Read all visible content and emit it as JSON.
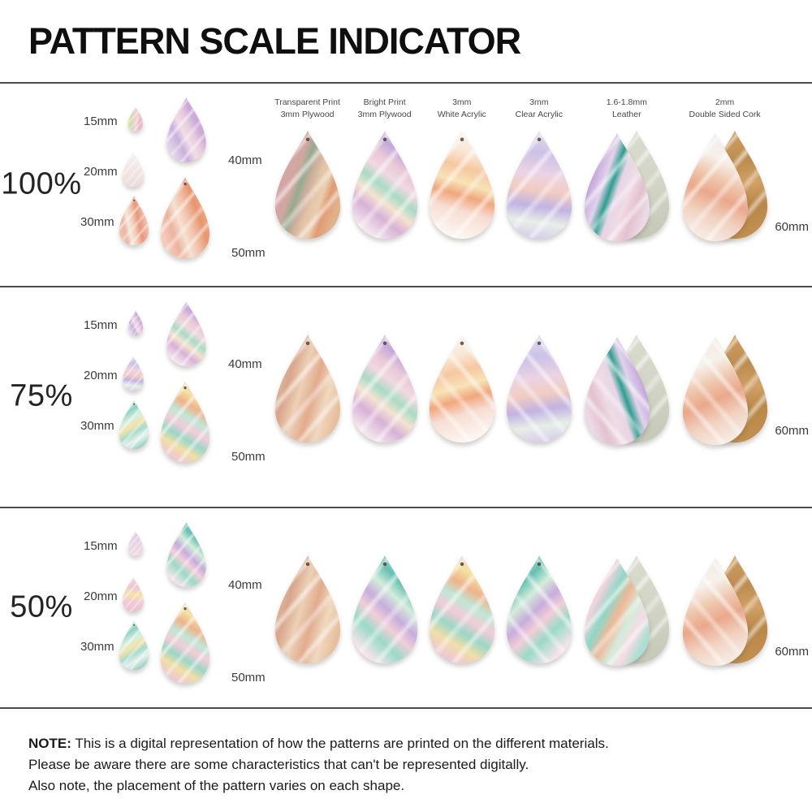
{
  "title": "PATTERN SCALE INDICATOR",
  "sizes": [
    "15mm",
    "20mm",
    "30mm",
    "40mm",
    "50mm"
  ],
  "large_size": "60mm",
  "sections": [
    {
      "scale": "100%"
    },
    {
      "scale": "75%"
    },
    {
      "scale": "50%"
    }
  ],
  "materials": [
    {
      "line1": "Transparent Print",
      "line2": "3mm Plywood"
    },
    {
      "line1": "Bright Print",
      "line2": "3mm Plywood"
    },
    {
      "line1": "3mm",
      "line2": "White Acrylic"
    },
    {
      "line1": "3mm",
      "line2": "Clear Acrylic"
    },
    {
      "line1": "1.6-1.8mm",
      "line2": "Leather"
    },
    {
      "line1": "2mm",
      "line2": "Double Sided Cork"
    }
  ],
  "note": {
    "label": "NOTE:",
    "line1": "This is a digital representation of how the patterns are printed on the different materials.",
    "line2": "Please be aware there are some characteristics that can't be represented digitally.",
    "line3": "Also note, the placement of the pattern varies on each shape."
  },
  "palette": {
    "background": "#ffffff",
    "divider": "#4b4b4b",
    "title_text": "#0f0f0f",
    "label_text": "#3a3a3a",
    "pastel_pink": "#f2c9d4",
    "pastel_lavender": "#c9aede",
    "pastel_mint": "#a8dcc8",
    "pastel_peach": "#f4c49a",
    "pastel_coral": "#e8976f",
    "plywood": "#d8a7a4",
    "cork_brown": "#c2904e",
    "suede_gray": "#d3d5c6"
  }
}
